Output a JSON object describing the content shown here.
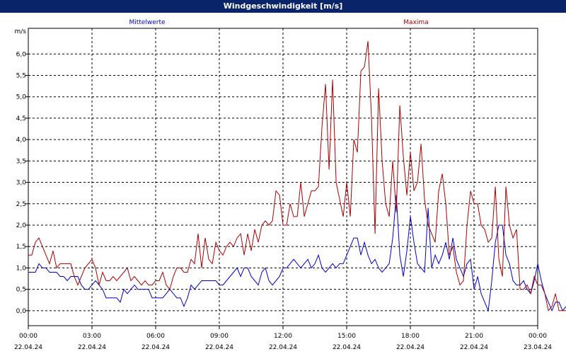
{
  "window": {
    "title": "Windgeschwindigkeit [m/s]"
  },
  "chart_data": {
    "type": "line",
    "ylabel": "m/s",
    "ylim": [
      -0.35,
      6.6
    ],
    "yticks": [
      0,
      0.5,
      1,
      1.5,
      2,
      2.5,
      3,
      3.5,
      4,
      4.5,
      5,
      5.5,
      6
    ],
    "ytick_labels": [
      "0,0",
      "0,5",
      "1,0",
      "1,5",
      "2,0",
      "2,5",
      "3,0",
      "3,5",
      "4,0",
      "4,5",
      "5,0",
      "5,5",
      "6,0"
    ],
    "xlim": [
      0,
      24
    ],
    "xticks": [
      0,
      3,
      6,
      9,
      12,
      15,
      18,
      21,
      24
    ],
    "xtick_labels": [
      [
        "00:00",
        "22.04.24"
      ],
      [
        "03:00",
        "22.04.24"
      ],
      [
        "06:00",
        "22.04.24"
      ],
      [
        "09:00",
        "22.04.24"
      ],
      [
        "12:00",
        "22.04.24"
      ],
      [
        "15:00",
        "22.04.24"
      ],
      [
        "18:00",
        "22.04.24"
      ],
      [
        "21:00",
        "22.04.24"
      ],
      [
        "00:00",
        "23.04.24"
      ]
    ],
    "grid": true,
    "series": [
      {
        "name": "Mittelwerte",
        "color": "#0000cc",
        "x_step_h": 0.1667,
        "values": [
          0.9,
          0.9,
          0.9,
          1.1,
          1.0,
          1.0,
          0.9,
          0.9,
          0.9,
          0.8,
          0.8,
          0.7,
          0.8,
          0.8,
          0.8,
          0.6,
          0.5,
          0.5,
          0.6,
          0.7,
          0.6,
          0.5,
          0.3,
          0.3,
          0.3,
          0.3,
          0.2,
          0.5,
          0.4,
          0.5,
          0.6,
          0.5,
          0.5,
          0.5,
          0.5,
          0.3,
          0.3,
          0.3,
          0.3,
          0.4,
          0.5,
          0.4,
          0.3,
          0.3,
          0.1,
          0.3,
          0.6,
          0.5,
          0.6,
          0.7,
          0.7,
          0.7,
          0.7,
          0.7,
          0.6,
          0.6,
          0.7,
          0.8,
          0.9,
          1.0,
          0.8,
          1.0,
          1.0,
          0.8,
          0.7,
          0.6,
          0.9,
          1.0,
          0.7,
          0.6,
          0.7,
          0.8,
          1.0,
          1.0,
          1.1,
          1.2,
          1.1,
          1.0,
          1.1,
          1.2,
          1.0,
          1.1,
          1.3,
          1.0,
          0.9,
          1.0,
          1.1,
          1.0,
          1.1,
          1.1,
          1.3,
          1.5,
          1.7,
          1.7,
          1.3,
          1.6,
          1.3,
          1.1,
          1.2,
          1.0,
          0.9,
          1.0,
          1.1,
          1.7,
          2.7,
          1.3,
          0.8,
          1.4,
          2.2,
          1.6,
          1.1,
          1.0,
          0.9,
          2.4,
          1.0,
          1.3,
          1.1,
          1.3,
          1.6,
          1.2,
          1.7,
          1.2,
          1.0,
          0.8,
          1.1,
          1.2,
          0.5,
          0.8,
          0.4,
          0.2,
          0.0,
          0.7,
          1.6,
          2.0,
          2.0,
          1.3,
          1.1,
          0.7,
          0.6,
          0.6,
          0.7,
          0.5,
          0.4,
          0.7,
          1.1,
          0.7,
          0.4,
          0.2,
          0.0,
          0.2,
          0.2,
          0.0,
          0.1,
          0.0,
          0.0,
          0.0,
          0.0,
          0.0,
          0.0,
          0.0,
          0.0,
          0.3,
          0.8,
          0.4
        ]
      },
      {
        "name": "Maxima",
        "color": "#aa0000",
        "x_step_h": 0.1667,
        "values": [
          1.3,
          1.3,
          1.6,
          1.7,
          1.5,
          1.3,
          1.1,
          1.4,
          1.0,
          1.1,
          1.1,
          1.1,
          1.1,
          0.8,
          0.6,
          0.8,
          1.0,
          1.1,
          1.2,
          1.0,
          0.6,
          0.9,
          0.7,
          0.7,
          0.8,
          0.7,
          0.8,
          0.9,
          1.0,
          0.7,
          0.8,
          0.7,
          0.6,
          0.7,
          0.6,
          0.6,
          0.7,
          0.7,
          0.9,
          0.6,
          0.5,
          0.8,
          1.0,
          1.0,
          0.9,
          0.9,
          1.2,
          1.1,
          1.8,
          1.0,
          1.7,
          1.2,
          1.1,
          1.6,
          1.4,
          1.3,
          1.5,
          1.6,
          1.5,
          1.7,
          1.8,
          1.3,
          1.8,
          1.4,
          1.9,
          1.6,
          2.0,
          2.1,
          2.0,
          2.1,
          2.8,
          2.7,
          2.0,
          2.0,
          2.5,
          2.2,
          2.2,
          3.0,
          2.2,
          2.5,
          2.8,
          2.8,
          2.9,
          4.3,
          5.3,
          3.3,
          5.4,
          3.0,
          2.6,
          2.2,
          3.0,
          2.2,
          4.0,
          3.7,
          5.6,
          5.7,
          6.3,
          4.5,
          1.8,
          5.2,
          3.5,
          2.5,
          2.2,
          3.5,
          2.3,
          4.8,
          3.6,
          2.7,
          3.7,
          2.8,
          3.0,
          3.9,
          2.6,
          2.0,
          1.8,
          1.6,
          2.8,
          3.2,
          2.5,
          1.3,
          1.5,
          0.9,
          0.6,
          0.7,
          2.0,
          2.8,
          2.5,
          2.5,
          2.0,
          1.9,
          1.6,
          1.7,
          2.9,
          1.2,
          0.8,
          2.9,
          2.0,
          1.7,
          1.9,
          0.5,
          0.5,
          0.6,
          0.4,
          0.8,
          0.6,
          0.6,
          0.4,
          0.0,
          0.1,
          0.4,
          0.0,
          0.0,
          0.0,
          0.0,
          0.4,
          0.8,
          1.3,
          1.0
        ]
      }
    ]
  }
}
